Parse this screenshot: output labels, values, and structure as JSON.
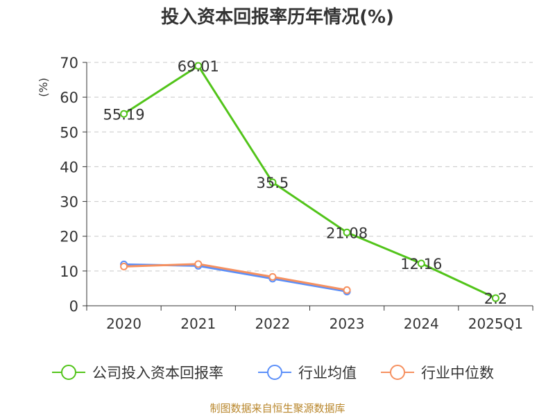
{
  "chart_data": {
    "type": "line",
    "title": "投入资本回报率历年情况(%)",
    "ylabel": "(%)",
    "xlabel": "",
    "categories": [
      "2020",
      "2021",
      "2022",
      "2023",
      "2024",
      "2025Q1"
    ],
    "ylim": [
      0,
      70
    ],
    "yticks": [
      0,
      10,
      20,
      30,
      40,
      50,
      60,
      70
    ],
    "grid": true,
    "legend_position": "bottom",
    "series": [
      {
        "name": "公司投入资本回报率",
        "color": "#52c41a",
        "values": [
          55.19,
          69.01,
          35.5,
          21.08,
          12.16,
          2.2
        ],
        "labels": [
          "55.19",
          "69.01",
          "35.5",
          "21.08",
          "12.16",
          "2.2"
        ]
      },
      {
        "name": "行业均值",
        "color": "#5b8ff9",
        "values": [
          11.9,
          11.5,
          7.8,
          4.1,
          null,
          null
        ]
      },
      {
        "name": "行业中位数",
        "color": "#f6905f",
        "values": [
          11.3,
          12.0,
          8.3,
          4.5,
          null,
          null
        ]
      }
    ]
  },
  "footer": {
    "source": "制图数据来自恒生聚源数据库"
  }
}
